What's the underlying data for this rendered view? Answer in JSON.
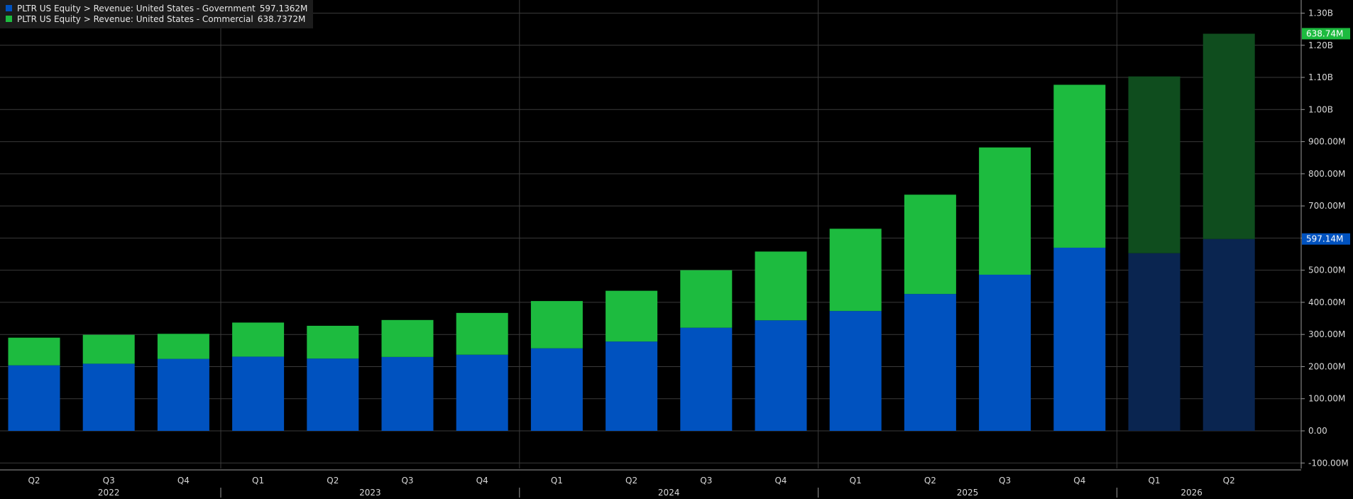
{
  "colors": {
    "background": "#000000",
    "grid": "#3a3a3a",
    "axis_text": "#d8d8d8",
    "government": "#0052bf",
    "commercial": "#1dbb3f",
    "government_estimate": "#0a2550",
    "commercial_estimate": "#0f4d1e"
  },
  "legend": [
    {
      "label": "PLTR US Equity > Revenue: United States - Government",
      "value": "597.1362M",
      "color": "#0052bf"
    },
    {
      "label": "PLTR US Equity > Revenue: United States - Commercial",
      "value": "638.7372M",
      "color": "#1dbb3f"
    }
  ],
  "chart_data": {
    "type": "bar",
    "stacked": true,
    "categories": [
      "Q2",
      "Q3",
      "Q4",
      "Q1",
      "Q2",
      "Q3",
      "Q4",
      "Q1",
      "Q2",
      "Q3",
      "Q4",
      "Q1",
      "Q2",
      "Q3",
      "Q4",
      "Q1",
      "Q2"
    ],
    "years": [
      {
        "label": "2022",
        "start": 0,
        "end": 2
      },
      {
        "label": "2023",
        "start": 3,
        "end": 6
      },
      {
        "label": "2024",
        "start": 7,
        "end": 10
      },
      {
        "label": "2025",
        "start": 11,
        "end": 14
      },
      {
        "label": "2026",
        "start": 15,
        "end": 16
      }
    ],
    "estimate_start_index": 15,
    "series": [
      {
        "name": "PLTR US Equity > Revenue: United States - Government",
        "values": [
          204,
          209,
          224,
          231,
          225,
          230,
          237,
          257,
          278,
          321,
          344,
          373,
          426,
          486,
          570,
          553,
          597.1362
        ]
      },
      {
        "name": "PLTR US Equity > Revenue: United States - Commercial",
        "values": [
          86,
          90,
          78,
          106,
          102,
          115,
          130,
          147,
          158,
          179,
          214,
          256,
          309,
          396,
          507,
          550,
          638.7372
        ]
      }
    ],
    "ylim": [
      -100,
      1300
    ],
    "yticks": [
      {
        "v": 1300,
        "label": "1.30B"
      },
      {
        "v": 1200,
        "label": "1.20B"
      },
      {
        "v": 1100,
        "label": "1.10B"
      },
      {
        "v": 1000,
        "label": "1.00B"
      },
      {
        "v": 900,
        "label": "900.00M"
      },
      {
        "v": 800,
        "label": "800.00M"
      },
      {
        "v": 700,
        "label": "700.00M"
      },
      {
        "v": 600,
        "label": "600.00M"
      },
      {
        "v": 500,
        "label": "500.00M"
      },
      {
        "v": 400,
        "label": "400.00M"
      },
      {
        "v": 300,
        "label": "300.00M"
      },
      {
        "v": 200,
        "label": "200.00M"
      },
      {
        "v": 100,
        "label": "100.00M"
      },
      {
        "v": 0,
        "label": "0.00"
      },
      {
        "v": -100,
        "label": "-100.00M"
      }
    ],
    "tags": [
      {
        "v": 1236.0,
        "label": "638.74M",
        "color": "#1dbb3f"
      },
      {
        "v": 597.14,
        "label": "597.14M",
        "color": "#0052bf"
      }
    ],
    "vertical_grid_after_categories": [
      2,
      6,
      10,
      14
    ]
  }
}
